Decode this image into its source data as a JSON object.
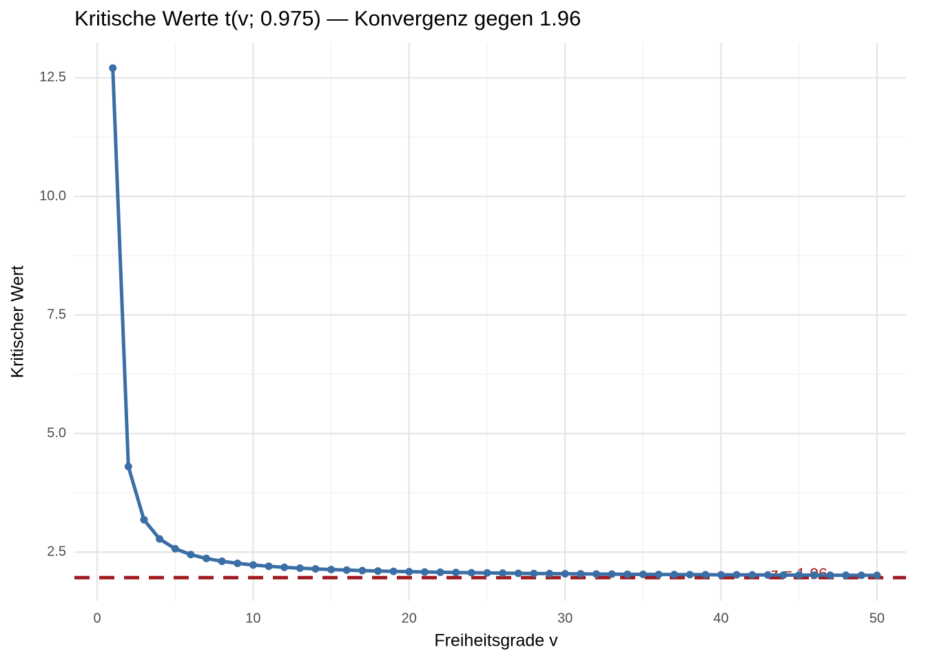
{
  "chart_data": {
    "type": "line",
    "title": "Kritische Werte t(v; 0.975) — Konvergenz gegen 1.96",
    "x_label": "Freiheitsgrade v",
    "y_label": "Kritischer Wert",
    "x": [
      1,
      2,
      3,
      4,
      5,
      6,
      7,
      8,
      9,
      10,
      11,
      12,
      13,
      14,
      15,
      16,
      17,
      18,
      19,
      20,
      21,
      22,
      23,
      24,
      25,
      26,
      27,
      28,
      29,
      30,
      31,
      32,
      33,
      34,
      35,
      36,
      37,
      38,
      39,
      40,
      41,
      42,
      43,
      44,
      45,
      46,
      47,
      48,
      49,
      50
    ],
    "series": [
      {
        "name": "t(v; 0.975)",
        "color": "#3a6ea5",
        "values": [
          12.706,
          4.303,
          3.182,
          2.776,
          2.571,
          2.447,
          2.365,
          2.306,
          2.262,
          2.228,
          2.201,
          2.179,
          2.16,
          2.145,
          2.131,
          2.12,
          2.11,
          2.101,
          2.093,
          2.086,
          2.08,
          2.074,
          2.069,
          2.064,
          2.06,
          2.056,
          2.052,
          2.048,
          2.045,
          2.042,
          2.04,
          2.037,
          2.035,
          2.032,
          2.03,
          2.028,
          2.026,
          2.024,
          2.023,
          2.021,
          2.02,
          2.018,
          2.017,
          2.015,
          2.014,
          2.013,
          2.012,
          2.011,
          2.01,
          2.009
        ]
      }
    ],
    "hline": {
      "y": 1.96,
      "color": "#a01a1f"
    },
    "annotations": [
      {
        "text": "z = 1.96",
        "x": 45,
        "y": 1.96
      }
    ],
    "xlim": [
      -1.46,
      51.86
    ],
    "ylim": [
      1.47,
      13.24
    ],
    "xticks": [
      0,
      10,
      20,
      30,
      40,
      50
    ],
    "yticks": [
      2.5,
      {
        "value": 5,
        "label": "5.0"
      },
      7.5,
      {
        "value": 10,
        "label": "10.0"
      },
      12.5
    ],
    "grid": true
  }
}
